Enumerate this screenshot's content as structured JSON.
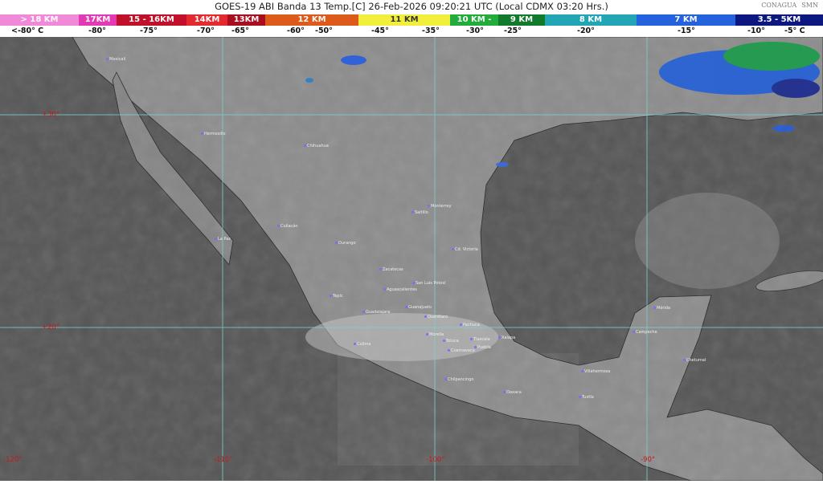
{
  "title": "GOES-19 ABI Banda 13 Temp.[C] 26-Feb-2026 09:20:21 UTC (Local CDMX  03:20 Hrs.)",
  "logos": [
    "CONAGUA",
    "SMN"
  ],
  "legend": {
    "segments": [
      {
        "label": "> 18 KM",
        "color": "#f08ad8"
      },
      {
        "label": "17KM",
        "color": "#e23ab4"
      },
      {
        "label": "15 - 16KM",
        "color": "#c0102a"
      },
      {
        "label": "14KM",
        "color": "#e42a30"
      },
      {
        "label": "13KM",
        "color": "#a80e1e"
      },
      {
        "label": "12 KM",
        "color": "#de5a1a"
      },
      {
        "label": "11 KM",
        "color": "#f2ee3c"
      },
      {
        "label": "10 KM -",
        "color": "#22ac3c"
      },
      {
        "label": "9 KM",
        "color": "#117a2c"
      },
      {
        "label": "8 KM",
        "color": "#22a6b6"
      },
      {
        "label": "7 KM",
        "color": "#2462de"
      },
      {
        "label": "3.5 - 5KM",
        "color": "#0c1880"
      }
    ],
    "temperatures": [
      "<-80° C",
      "-80°",
      "-75°",
      "-70°",
      "-65°",
      "-60°",
      "-50°",
      "-45°",
      "-35°",
      "-30°",
      "-25°",
      "-20°",
      "-15°",
      "-10°",
      "-5° C"
    ]
  },
  "grid_labels": {
    "lat": [
      "+30°",
      "+20°"
    ],
    "lon": [
      "-120°",
      "-110°",
      "-100°",
      "-90°"
    ]
  },
  "cities": [
    "Mexicali",
    "Hermosillo",
    "Chihuahua",
    "Culiacán",
    "La Paz",
    "Durango",
    "Saltillo",
    "Monterrey",
    "Cd. Victoria",
    "Zacatecas",
    "San Luis Potosí",
    "Aguascalientes",
    "Tepic",
    "Guadalajara",
    "Guanajuato",
    "Querétaro",
    "Pachuca",
    "Morelia",
    "Colima",
    "Toluca",
    "Tlaxcala",
    "Cuernavaca",
    "Puebla",
    "Xalapa",
    "Chilpancingo",
    "Oaxaca",
    "Villahermosa",
    "Tuxtla",
    "Campeche",
    "Mérida",
    "Chetumal"
  ]
}
